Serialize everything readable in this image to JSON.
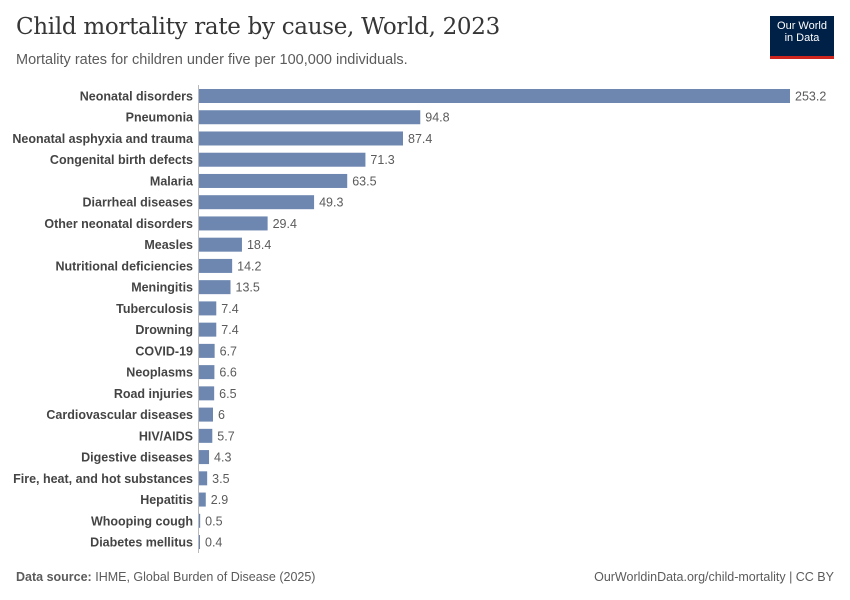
{
  "title": "Child mortality rate by cause, World, 2023",
  "subtitle": "Mortality rates for children under five per 100,000 individuals.",
  "logo": {
    "line1": "Our World",
    "line2": "in Data"
  },
  "footer": {
    "source_label": "Data source:",
    "source_text": "IHME, Global Burden of Disease (2025)",
    "url": "OurWorldinData.org/child-mortality | CC BY"
  },
  "chart_data": {
    "type": "bar",
    "orientation": "horizontal",
    "bar_color": "#6d87b0",
    "categories": [
      "Neonatal disorders",
      "Pneumonia",
      "Neonatal asphyxia and trauma",
      "Congenital birth defects",
      "Malaria",
      "Diarrheal diseases",
      "Other neonatal disorders",
      "Measles",
      "Nutritional deficiencies",
      "Meningitis",
      "Tuberculosis",
      "Drowning",
      "COVID-19",
      "Neoplasms",
      "Road injuries",
      "Cardiovascular diseases",
      "HIV/AIDS",
      "Digestive diseases",
      "Fire, heat, and hot substances",
      "Hepatitis",
      "Whooping cough",
      "Diabetes mellitus"
    ],
    "values": [
      253.2,
      94.8,
      87.4,
      71.3,
      63.5,
      49.3,
      29.4,
      18.4,
      14.2,
      13.5,
      7.4,
      7.4,
      6.7,
      6.6,
      6.5,
      6,
      5.7,
      4.3,
      3.5,
      2.9,
      0.5,
      0.4
    ],
    "xlim": [
      0,
      253.2
    ],
    "grid": false
  }
}
